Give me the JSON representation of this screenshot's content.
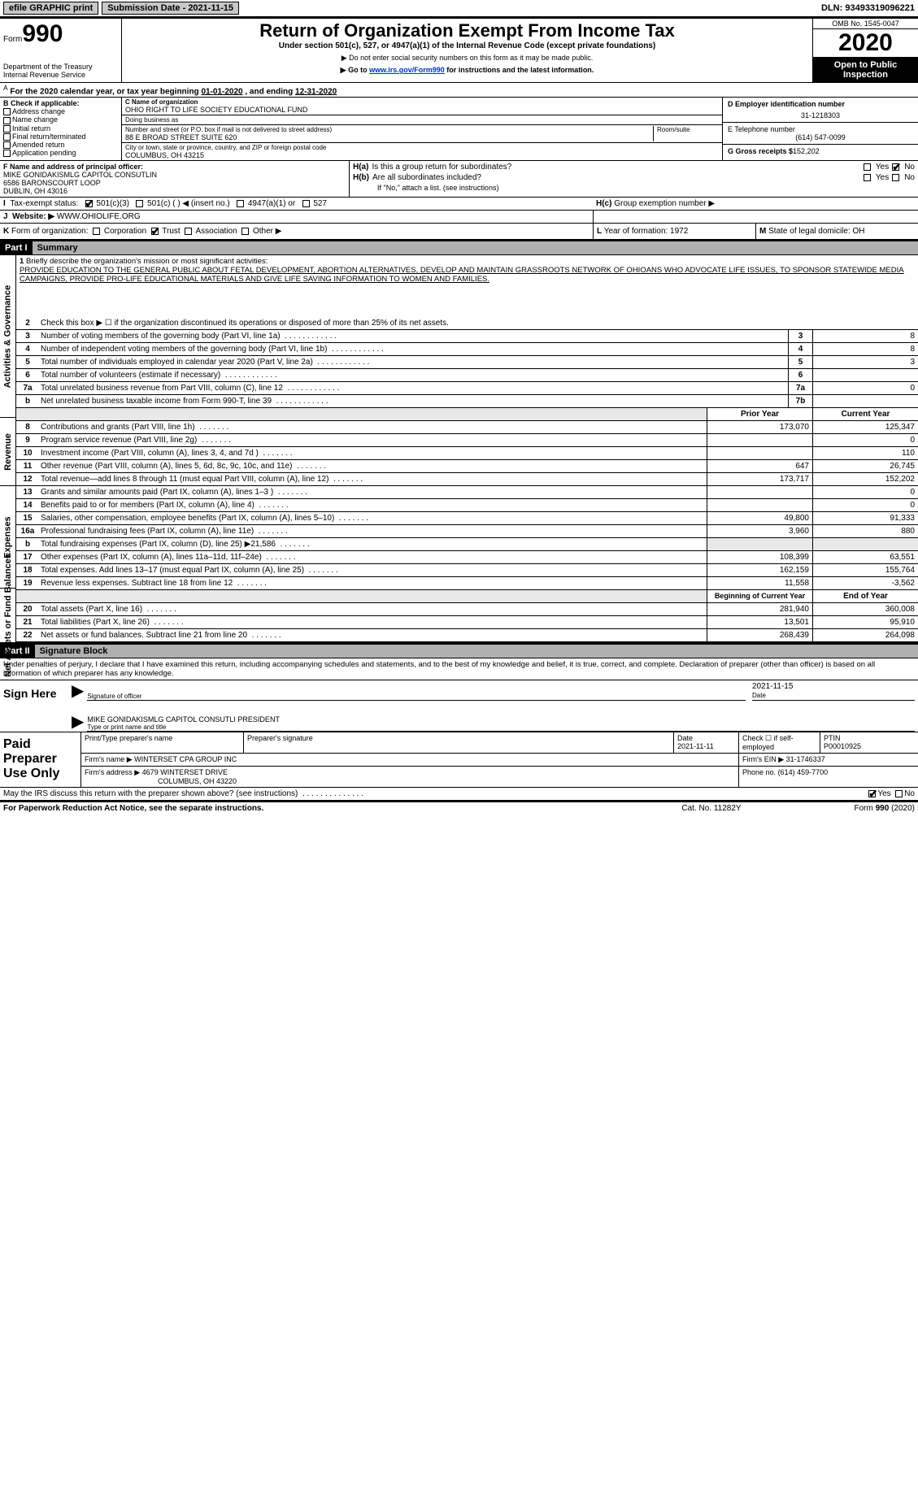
{
  "topbar": {
    "btn1": "efile GRAPHIC print",
    "sub_label": "Submission Date - 2021-11-15",
    "dln_label": "DLN: 93493319096221"
  },
  "header": {
    "form_label": "Form",
    "form_num": "990",
    "dept1": "Department of the Treasury",
    "dept2": "Internal Revenue Service",
    "title": "Return of Organization Exempt From Income Tax",
    "sub": "Under section 501(c), 527, or 4947(a)(1) of the Internal Revenue Code (except private foundations)",
    "note1": "▶ Do not enter social security numbers on this form as it may be made public.",
    "note2_pre": "▶ Go to ",
    "note2_link": "www.irs.gov/Form990",
    "note2_post": " for instructions and the latest information.",
    "omb": "OMB No. 1545-0047",
    "year": "2020",
    "open": "Open to Public Inspection"
  },
  "ay": {
    "a_sup": "A",
    "text_pre": " For the 2020 calendar year, or tax year beginning ",
    "begin": "01-01-2020",
    "mid": "  , and ending ",
    "end": "12-31-2020"
  },
  "checkB": {
    "hdr": "B Check if applicable:",
    "opts": [
      "Address change",
      "Name change",
      "Initial return",
      "Final return/terminated",
      "Amended return",
      "Application pending"
    ]
  },
  "orgC": {
    "name_lbl": "C Name of organization",
    "name": "OHIO RIGHT TO LIFE SOCIETY EDUCATIONAL FUND",
    "dba_lbl": "Doing business as",
    "dba": "",
    "addr_lbl": "Number and street (or P.O. box if mail is not delivered to street address)",
    "room_lbl": "Room/suite",
    "addr": "88 E BROAD STREET SUITE 620",
    "city_lbl": "City or town, state or province, country, and ZIP or foreign postal code",
    "city": "COLUMBUS, OH  43215"
  },
  "colD": {
    "ein_lbl": "D Employer identification number",
    "ein": "31-1218303",
    "tel_lbl": "E Telephone number",
    "tel": "(614) 547-0099",
    "gross_lbl": "G Gross receipts $",
    "gross": "152,202"
  },
  "f": {
    "lbl": "F  Name and address of principal officer:",
    "l1": "MIKE GONIDAKISMLG CAPITOL CONSUTLIN",
    "l2": "6586 BARONSCOURT LOOP",
    "l3": "DUBLIN, OH  43016"
  },
  "h": {
    "a_lbl": "H(a)",
    "a_txt": "Is this a group return for subordinates?",
    "b_lbl": "H(b)",
    "b_txt": "Are all subordinates included?",
    "b_note": "If \"No,\" attach a list. (see instructions)",
    "c_lbl": "H(c)",
    "c_txt": "Group exemption number ▶",
    "yes": "Yes",
    "no": "No"
  },
  "i": {
    "lbl": "I",
    "txt": "Tax-exempt status:",
    "opts": [
      "501(c)(3)",
      "501(c) (   ) ◀ (insert no.)",
      "4947(a)(1) or",
      "527"
    ]
  },
  "j": {
    "lbl": "J",
    "txt": "Website: ▶",
    "val": "WWW.OHIOLIFE.ORG"
  },
  "k": {
    "lbl": "K",
    "txt": "Form of organization:",
    "opts": [
      "Corporation",
      "Trust",
      "Association",
      "Other ▶"
    ],
    "l_lbl": "L",
    "l_txt": "Year of formation: 1972",
    "m_lbl": "M",
    "m_txt": "State of legal domicile: OH"
  },
  "parts": {
    "p1": "Part I",
    "p1_title": "Summary",
    "p2": "Part II",
    "p2_title": "Signature Block"
  },
  "sidebar": {
    "ag": "Activities & Governance",
    "rev": "Revenue",
    "exp": "Expenses",
    "na": "Net Assets or Fund Balances"
  },
  "summary": {
    "l1_lbl": "1",
    "l1_txt": "Briefly describe the organization's mission or most significant activities:",
    "mission": "PROVIDE EDUCATION TO THE GENERAL PUBLIC ABOUT FETAL DEVELOPMENT, ABORTION ALTERNATIVES, DEVELOP AND MAINTAIN GRASSROOTS NETWORK OF OHIOANS WHO ADVOCATE LIFE ISSUES, TO SPONSOR STATEWIDE MEDIA CAMPAIGNS, PROVIDE PRO-LIFE EDUCATIONAL MATERIALS AND GIVE LIFE SAVING INFORMATION TO WOMEN AND FAMILIES.",
    "l2_lbl": "2",
    "l2_txt": "Check this box ▶ ☐ if the organization discontinued its operations or disposed of more than 25% of its net assets.",
    "lines_ag": [
      {
        "n": "3",
        "t": "Number of voting members of the governing body (Part VI, line 1a)",
        "b": "3",
        "v": "8"
      },
      {
        "n": "4",
        "t": "Number of independent voting members of the governing body (Part VI, line 1b)",
        "b": "4",
        "v": "8"
      },
      {
        "n": "5",
        "t": "Total number of individuals employed in calendar year 2020 (Part V, line 2a)",
        "b": "5",
        "v": "3"
      },
      {
        "n": "6",
        "t": "Total number of volunteers (estimate if necessary)",
        "b": "6",
        "v": ""
      },
      {
        "n": "7a",
        "t": "Total unrelated business revenue from Part VIII, column (C), line 12",
        "b": "7a",
        "v": "0"
      },
      {
        "n": "b",
        "t": "Net unrelated business taxable income from Form 990-T, line 39",
        "b": "7b",
        "v": ""
      }
    ],
    "colhdr_prior": "Prior Year",
    "colhdr_curr": "Current Year",
    "lines_rev": [
      {
        "n": "8",
        "t": "Contributions and grants (Part VIII, line 1h)",
        "p": "173,070",
        "c": "125,347"
      },
      {
        "n": "9",
        "t": "Program service revenue (Part VIII, line 2g)",
        "p": "",
        "c": "0"
      },
      {
        "n": "10",
        "t": "Investment income (Part VIII, column (A), lines 3, 4, and 7d )",
        "p": "",
        "c": "110"
      },
      {
        "n": "11",
        "t": "Other revenue (Part VIII, column (A), lines 5, 6d, 8c, 9c, 10c, and 11e)",
        "p": "647",
        "c": "26,745"
      },
      {
        "n": "12",
        "t": "Total revenue—add lines 8 through 11 (must equal Part VIII, column (A), line 12)",
        "p": "173,717",
        "c": "152,202"
      }
    ],
    "lines_exp": [
      {
        "n": "13",
        "t": "Grants and similar amounts paid (Part IX, column (A), lines 1–3 )",
        "p": "",
        "c": "0"
      },
      {
        "n": "14",
        "t": "Benefits paid to or for members (Part IX, column (A), line 4)",
        "p": "",
        "c": "0"
      },
      {
        "n": "15",
        "t": "Salaries, other compensation, employee benefits (Part IX, column (A), lines 5–10)",
        "p": "49,800",
        "c": "91,333"
      },
      {
        "n": "16a",
        "t": "Professional fundraising fees (Part IX, column (A), line 11e)",
        "p": "3,960",
        "c": "880"
      },
      {
        "n": "b",
        "t": "Total fundraising expenses (Part IX, column (D), line 25) ▶21,586",
        "p": "GRAY",
        "c": "GRAY"
      },
      {
        "n": "17",
        "t": "Other expenses (Part IX, column (A), lines 11a–11d, 11f–24e)",
        "p": "108,399",
        "c": "63,551"
      },
      {
        "n": "18",
        "t": "Total expenses. Add lines 13–17 (must equal Part IX, column (A), line 25)",
        "p": "162,159",
        "c": "155,764"
      },
      {
        "n": "19",
        "t": "Revenue less expenses. Subtract line 18 from line 12",
        "p": "11,558",
        "c": "-3,562"
      }
    ],
    "colhdr_beg": "Beginning of Current Year",
    "colhdr_end": "End of Year",
    "lines_na": [
      {
        "n": "20",
        "t": "Total assets (Part X, line 16)",
        "p": "281,940",
        "c": "360,008"
      },
      {
        "n": "21",
        "t": "Total liabilities (Part X, line 26)",
        "p": "13,501",
        "c": "95,910"
      },
      {
        "n": "22",
        "t": "Net assets or fund balances. Subtract line 21 from line 20",
        "p": "268,439",
        "c": "264,098"
      }
    ]
  },
  "sig": {
    "decl": "Under penalties of perjury, I declare that I have examined this return, including accompanying schedules and statements, and to the best of my knowledge and belief, it is true, correct, and complete. Declaration of preparer (other than officer) is based on all information of which preparer has any knowledge.",
    "sign_here": "Sign Here",
    "sig_officer": "Signature of officer",
    "date_lbl": "Date",
    "date_val": "2021-11-15",
    "name_title": "MIKE GONIDAKISMLG CAPITOL CONSUTLI  PRESIDENT",
    "type_name": "Type or print name and title"
  },
  "prep": {
    "paid": "Paid Preparer Use Only",
    "h1": "Print/Type preparer's name",
    "h2": "Preparer's signature",
    "h3": "Date",
    "h3v": "2021-11-11",
    "h4": "Check ☐ if self-employed",
    "h5": "PTIN",
    "h5v": "P00010925",
    "firm_name_lbl": "Firm's name    ▶",
    "firm_name": "WINTERSET CPA GROUP INC",
    "firm_ein_lbl": "Firm's EIN ▶",
    "firm_ein": "31-1746337",
    "firm_addr_lbl": "Firm's address ▶",
    "firm_addr1": "4679 WINTERSET DRIVE",
    "firm_addr2": "COLUMBUS, OH  43220",
    "phone_lbl": "Phone no.",
    "phone": "(614) 459-7700"
  },
  "foot": {
    "q": "May the IRS discuss this return with the preparer shown above? (see instructions)",
    "yes": "Yes",
    "no": "No",
    "pra": "For Paperwork Reduction Act Notice, see the separate instructions.",
    "cat": "Cat. No. 11282Y",
    "form": "Form 990 (2020)"
  }
}
